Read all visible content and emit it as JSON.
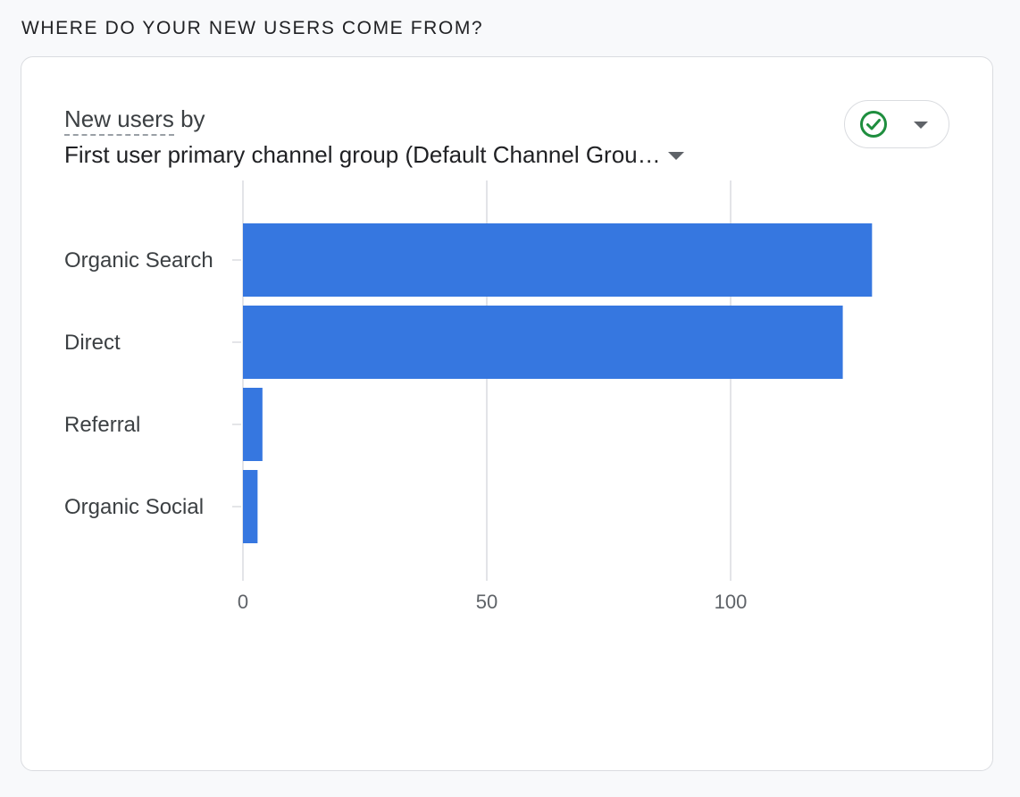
{
  "section": {
    "heading": "WHERE DO YOUR NEW USERS COME FROM?"
  },
  "card": {
    "metric": "New users",
    "by_word": "by",
    "dimension": "First user primary channel group (Default Channel Grou…",
    "status_icon": "check-circle-icon",
    "status_color": "#1e8e3e"
  },
  "colors": {
    "bar": "#3677e0",
    "grid": "#dadce0",
    "axis_text": "#5f6368",
    "label_text": "#3c4043"
  },
  "chart_data": {
    "type": "bar",
    "orientation": "horizontal",
    "categories": [
      "Organic Search",
      "Direct",
      "Referral",
      "Organic Social"
    ],
    "values": [
      129,
      123,
      4,
      3
    ],
    "xticks": [
      0,
      50,
      100
    ],
    "xlim": [
      0,
      145
    ],
    "grid": true,
    "title": "",
    "xlabel": "",
    "ylabel": ""
  }
}
